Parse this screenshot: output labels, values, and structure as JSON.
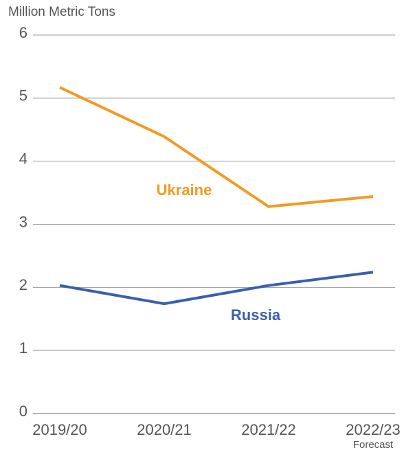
{
  "chart_data": {
    "type": "line",
    "y_axis_label": "Million Metric Tons",
    "categories": [
      "2019/20",
      "2020/21",
      "2021/22",
      "2022/23"
    ],
    "annotations": [
      "Forecast"
    ],
    "series": [
      {
        "name": "Ukraine",
        "color": "#f39a21",
        "values": [
          5.17,
          4.39,
          3.28,
          3.44
        ]
      },
      {
        "name": "Russia",
        "color": "#3a5fad",
        "values": [
          2.03,
          1.74,
          2.03,
          2.24
        ]
      }
    ],
    "ylim": [
      0,
      6
    ],
    "yticks": [
      0,
      1,
      2,
      3,
      4,
      5,
      6
    ],
    "grid": true
  }
}
